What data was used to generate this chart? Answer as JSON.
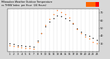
{
  "title": "Milwaukee Weather Outdoor Temperature vs THSW Index per Hour (24 Hours)",
  "title_fontsize": 2.8,
  "background_color": "#d8d8d8",
  "plot_bg_color": "#ffffff",
  "hours": [
    1,
    2,
    3,
    4,
    5,
    6,
    7,
    8,
    9,
    10,
    11,
    12,
    13,
    14,
    15,
    16,
    17,
    18,
    19,
    20,
    21,
    22,
    23
  ],
  "temp": [
    30,
    29,
    28,
    28,
    27,
    27,
    26,
    34,
    43,
    52,
    58,
    63,
    66,
    65,
    63,
    60,
    56,
    50,
    45,
    42,
    40,
    37,
    35
  ],
  "thsw": [
    28,
    27,
    26,
    25,
    24,
    24,
    23,
    32,
    43,
    54,
    62,
    68,
    73,
    71,
    68,
    64,
    57,
    49,
    43,
    39,
    36,
    32,
    30
  ],
  "temp_color": "#000000",
  "thsw_color_low": "#ff6600",
  "thsw_color_high": "#ff0000",
  "legend_orange_color": "#ff6600",
  "legend_red_color": "#ff0000",
  "ylim": [
    20,
    75
  ],
  "xlim": [
    0.5,
    23.5
  ],
  "tick_fontsize": 2.5,
  "grid_color": "#b0b0b0",
  "marker_size": 1.2,
  "linewidth": 0.3
}
